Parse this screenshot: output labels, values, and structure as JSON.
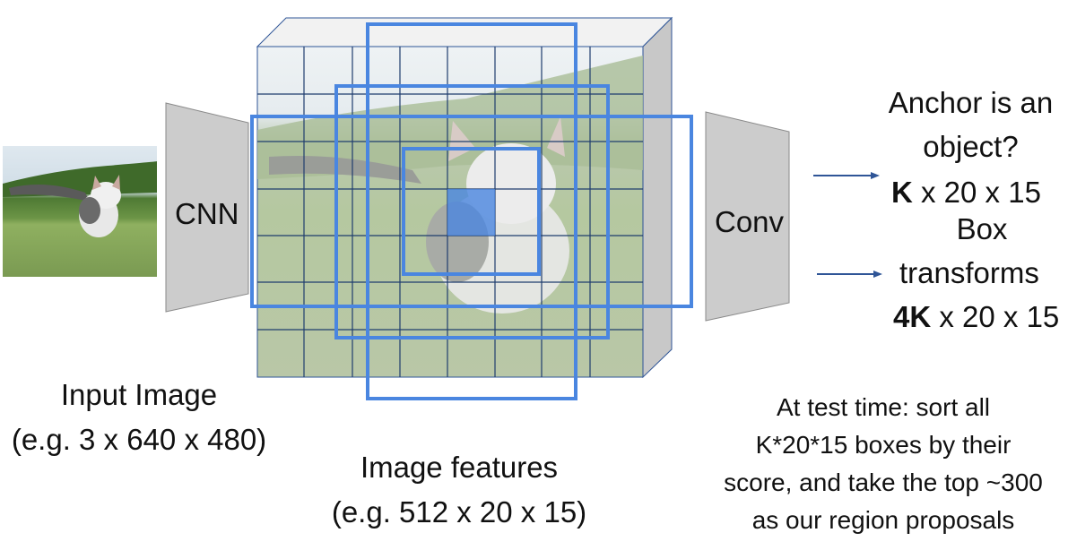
{
  "input": {
    "title": "Input Image",
    "subtitle": "(e.g. 3 x 640 x 480)"
  },
  "cnn_label": "CNN",
  "conv_label": "Conv",
  "features": {
    "title": "Image features",
    "subtitle": "(e.g. 512 x 20 x 15)"
  },
  "objectness": {
    "line1": "Anchor is an",
    "line2": "object?",
    "bold": "K",
    "shape": " x 20 x 15"
  },
  "box": {
    "line1": "Box",
    "line2": "transforms",
    "bold": "4K",
    "shape": " x 20 x 15"
  },
  "note": {
    "lines": [
      "At test time: sort all",
      "K*20*15 boxes by their",
      "score, and take the top ~300",
      "as our region proposals"
    ]
  },
  "colors": {
    "anchor_box": "#4a86e0",
    "grid": "#1f3d6e",
    "trapezoid": "#cccccc",
    "arrow": "#2f5597"
  }
}
